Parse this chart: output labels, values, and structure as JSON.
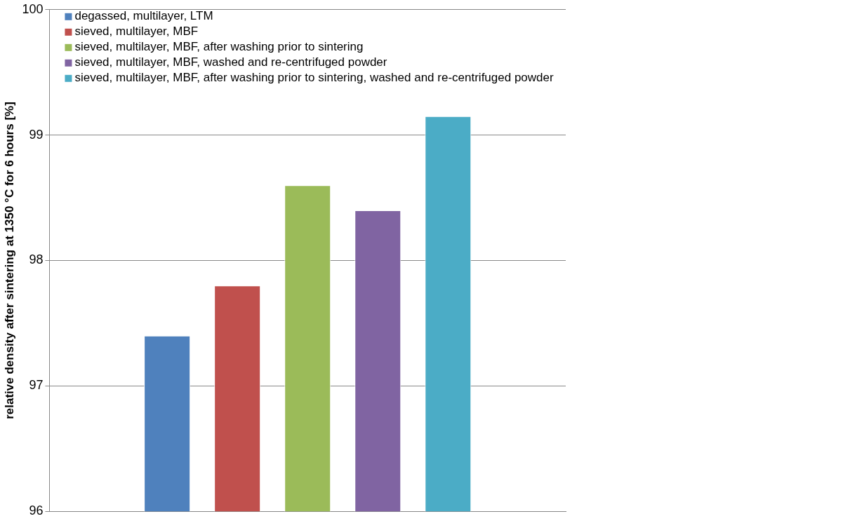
{
  "chart_data": {
    "type": "bar",
    "ylabel": "relative density after sintering at 1350 °C for 6 hours [%]",
    "categories": [
      null
    ],
    "series": [
      {
        "name": "degassed, multilayer, LTM",
        "color": "#4f81bd",
        "values": [
          97.4
        ]
      },
      {
        "name": "sieved, multilayer, MBF",
        "color": "#c0504d",
        "values": [
          97.8
        ]
      },
      {
        "name": "sieved, multilayer, MBF, after washing prior to sintering",
        "color": "#9bbb59",
        "values": [
          98.6
        ]
      },
      {
        "name": "sieved, multilayer, MBF, washed and re-centrifuged powder",
        "color": "#8064a2",
        "values": [
          98.4
        ]
      },
      {
        "name": "sieved, multilayer, MBF, after washing prior to sintering, washed and re-centrifuged powder",
        "color": "#4bacc6",
        "values": [
          99.15
        ]
      }
    ],
    "ylim": [
      96,
      100
    ],
    "yticks": [
      96,
      97,
      98,
      99,
      100
    ],
    "grid": "y",
    "legend": "top left",
    "tick_labels": "y"
  }
}
